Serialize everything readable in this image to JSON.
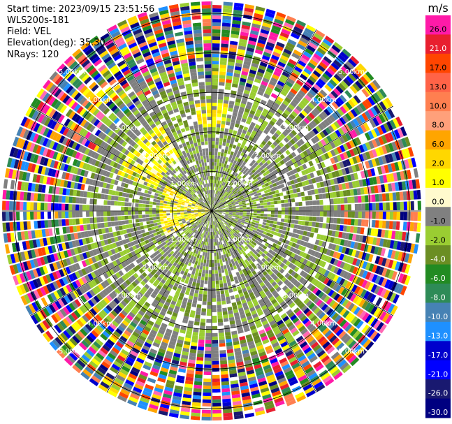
{
  "info": {
    "start_time": "Start time: 2023/09/15 23:51:56",
    "instrument": "WLS200s-181",
    "field": "Field: VEL",
    "elevation": "Elevation(deg): 35.30",
    "nrays": "NRays: 120"
  },
  "colorbar": {
    "unit": "m/s",
    "tick_labels": [
      "26.0",
      "21.0",
      "17.0",
      "13.0",
      "10.0",
      "8.0",
      "6.0",
      "2.0",
      "1.0",
      "0.0",
      "-1.0",
      "-2.0",
      "-4.0",
      "-6.0",
      "-8.0",
      "-10.0",
      "-13.0",
      "-17.0",
      "-21.0",
      "-26.0",
      "-30.0"
    ],
    "colors": [
      "#ff1aa8",
      "#e81f2f",
      "#ff4500",
      "#ff6347",
      "#ff7f50",
      "#ffa07a",
      "#ffa500",
      "#ffd700",
      "#ffff00",
      "#fffacd",
      "#808080",
      "#9acd32",
      "#6b8e23",
      "#228b22",
      "#2e8b57",
      "#4682b4",
      "#1e90ff",
      "#0000cd",
      "#0000ff",
      "#191970",
      "#000080"
    ]
  },
  "chart_data": {
    "type": "heatmap",
    "title": "",
    "rings_km": [
      1.0,
      2.0,
      3.0,
      4.0,
      5.0
    ],
    "ring_labels": [
      "1.00km",
      "2.00km",
      "3.00km",
      "4.00km",
      "5.00km"
    ],
    "nrays": 120,
    "value_range": [
      -30,
      26
    ],
    "unit": "m/s",
    "description_field": "VEL"
  }
}
